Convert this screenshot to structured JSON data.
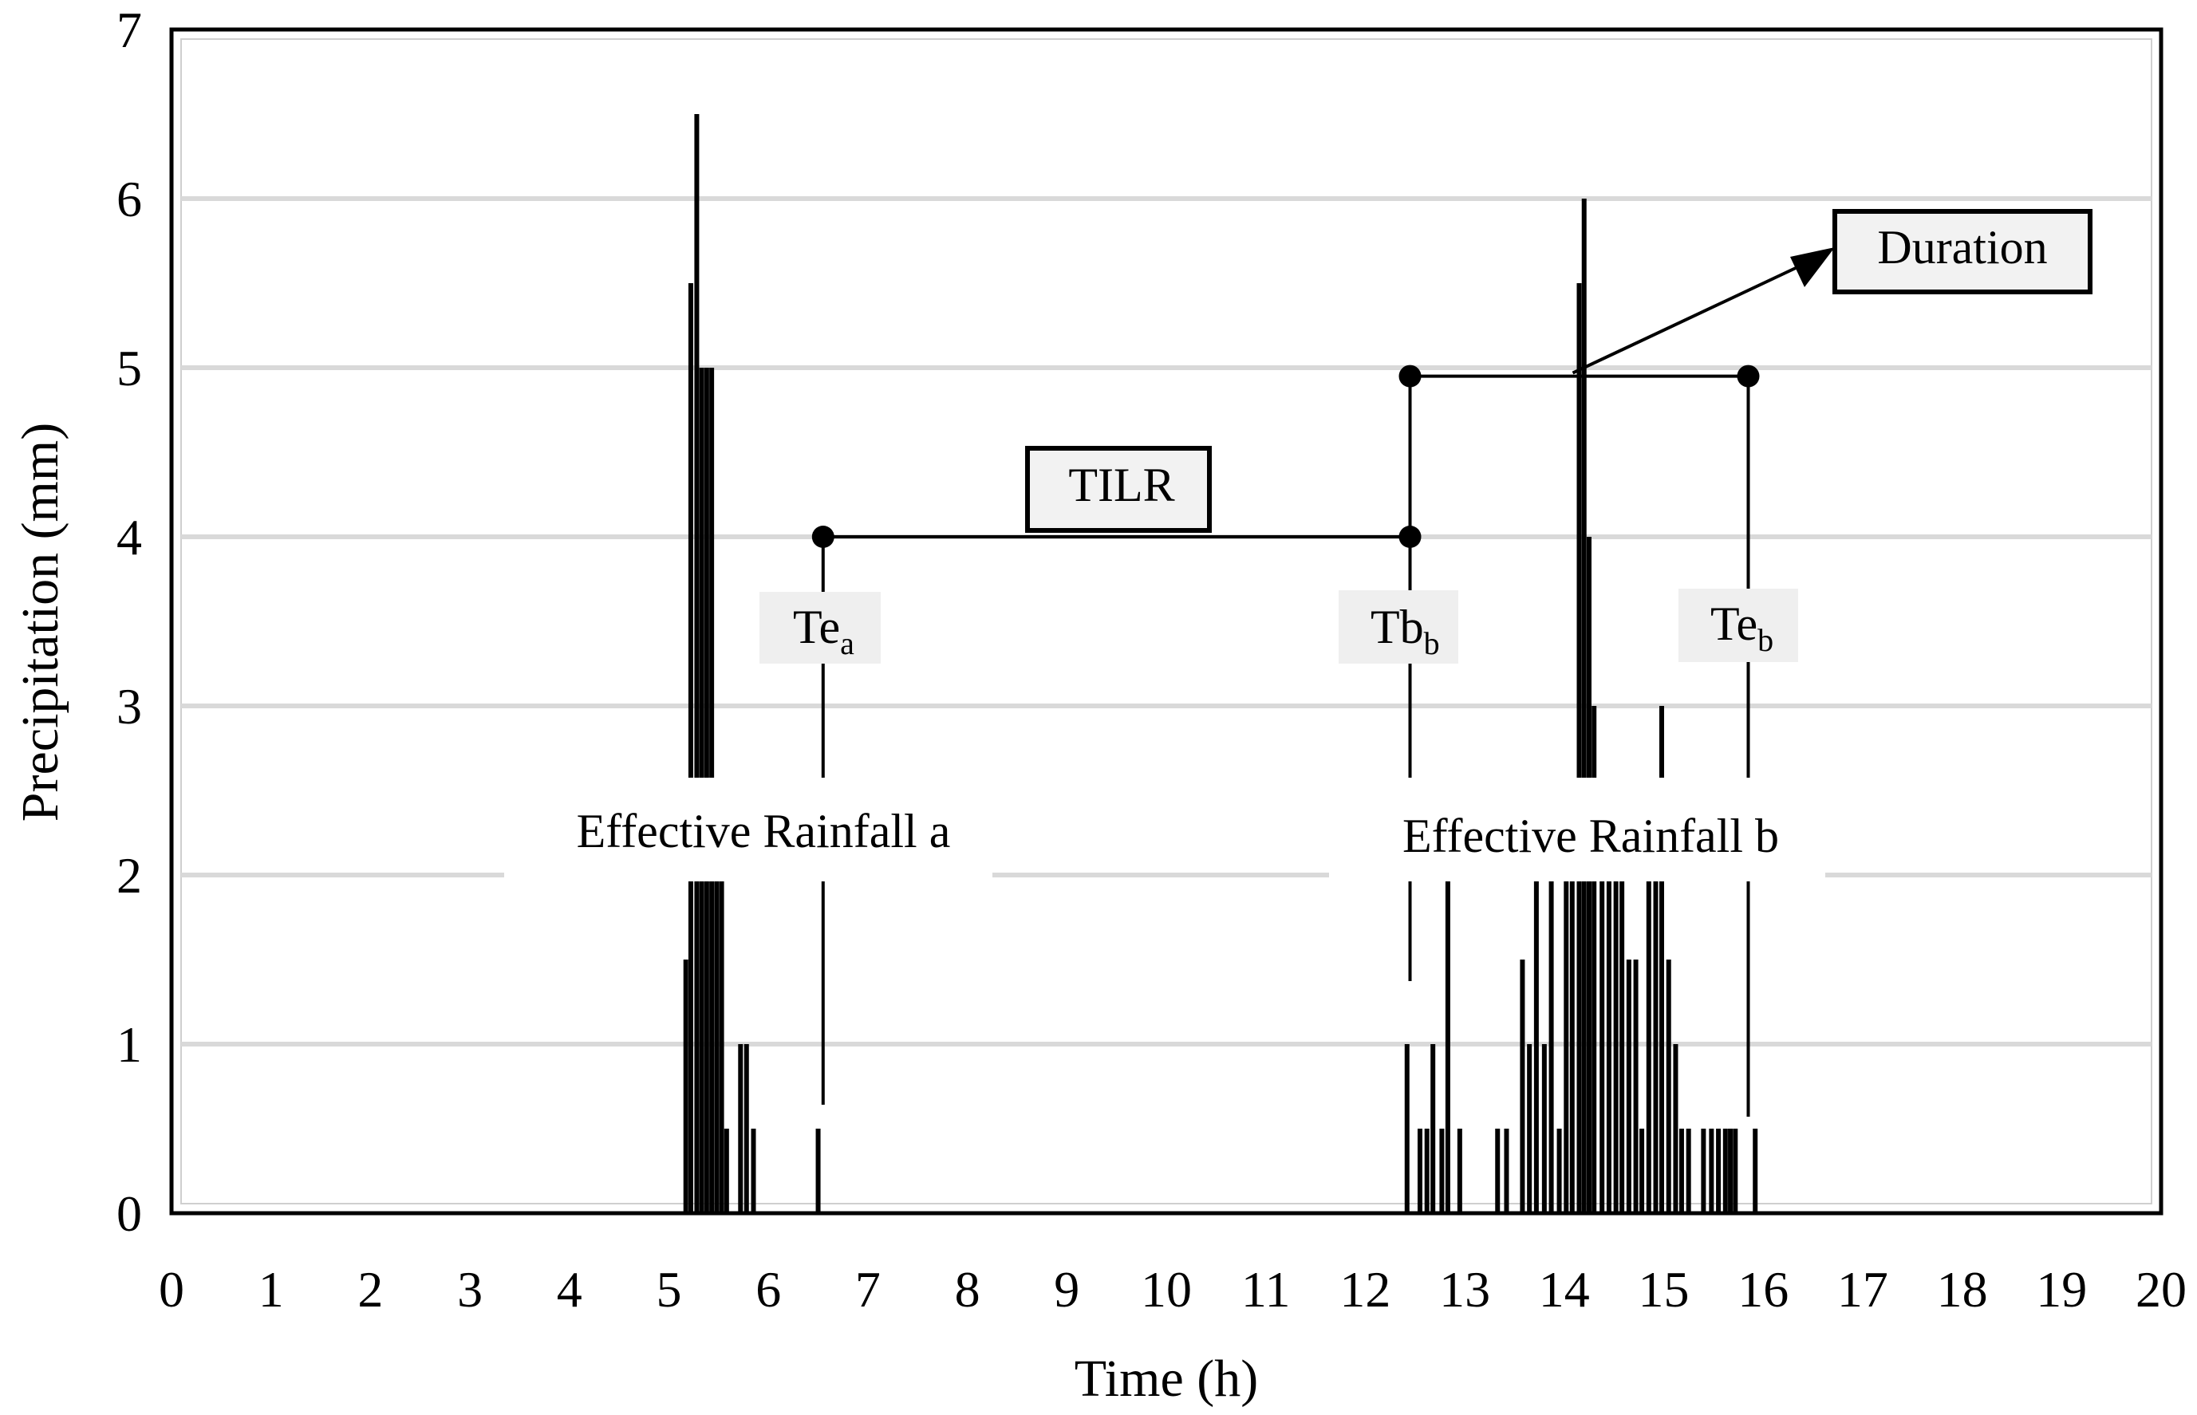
{
  "chart_data": {
    "type": "bar",
    "xlabel": "Time (h)",
    "ylabel": "Precipitation (mm)",
    "xlim": [
      0,
      20
    ],
    "ylim": [
      0,
      7
    ],
    "x_ticks": [
      "0",
      "1",
      "2",
      "3",
      "4",
      "5",
      "6",
      "7",
      "8",
      "9",
      "10",
      "11",
      "12",
      "13",
      "14",
      "15",
      "16",
      "17",
      "18",
      "19",
      "20"
    ],
    "y_ticks": [
      "0",
      "1",
      "2",
      "3",
      "4",
      "5",
      "6",
      "7"
    ],
    "grid": "horizontal",
    "series": [
      {
        "x": [
          5.17,
          5.22,
          5.28,
          5.33,
          5.38,
          5.43,
          5.48,
          5.53,
          5.58,
          5.72,
          5.78,
          5.85,
          6.5,
          12.42,
          12.55,
          12.62,
          12.68,
          12.77,
          12.83,
          12.95,
          13.33,
          13.42,
          13.58,
          13.65,
          13.72,
          13.8,
          13.87,
          13.95,
          14.02,
          14.08,
          14.15,
          14.2,
          14.25,
          14.3,
          14.38,
          14.45,
          14.52,
          14.58,
          14.65,
          14.72,
          14.78,
          14.85,
          14.92,
          14.98,
          15.05,
          15.12,
          15.18,
          15.25,
          15.4,
          15.48,
          15.55,
          15.62,
          15.67,
          15.72,
          15.92
        ],
        "values": [
          1.5,
          5.5,
          6.5,
          5.0,
          5.0,
          5.0,
          2.0,
          2.0,
          0.5,
          1.0,
          1.0,
          0.5,
          0.5,
          1.0,
          0.5,
          0.5,
          1.0,
          0.5,
          2.0,
          0.5,
          0.5,
          0.5,
          1.5,
          1.0,
          2.0,
          1.0,
          2.0,
          0.5,
          2.0,
          2.0,
          5.5,
          6.0,
          4.0,
          3.0,
          2.0,
          2.0,
          2.0,
          2.0,
          1.5,
          1.5,
          0.5,
          2.0,
          2.0,
          3.0,
          1.5,
          1.0,
          0.5,
          0.5,
          0.5,
          0.5,
          0.5,
          0.5,
          0.5,
          0.5,
          0.5
        ]
      }
    ],
    "annotations": {
      "effective_a": "Effective Rainfall a",
      "effective_b": "Effective Rainfall b",
      "tilr": "TILR",
      "duration": "Duration",
      "te_a_main": "Te",
      "te_a_sub": "a",
      "tb_b_main": "Tb",
      "tb_b_sub": "b",
      "te_b_main": "Te",
      "te_b_sub": "b",
      "marker_x": {
        "te_a": 6.55,
        "tb_b": 12.45,
        "te_b": 15.85
      },
      "tilr_y": 4.0,
      "duration_y": 4.95
    }
  }
}
